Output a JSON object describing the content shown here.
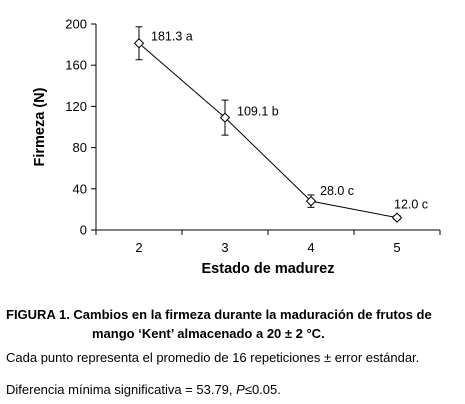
{
  "chart_data": {
    "type": "line",
    "x": [
      2,
      3,
      4,
      5
    ],
    "categories": [
      "2",
      "3",
      "4",
      "5"
    ],
    "series": [
      {
        "values": [
          181.3,
          109.1,
          28.0,
          12.0
        ],
        "errors": [
          16,
          17,
          6,
          2
        ],
        "labels": [
          "181.3 a",
          "109.1 b",
          "28.0 c",
          "12.0 c"
        ]
      }
    ],
    "xlabel": "Estado de madurez",
    "ylabel": "Firmeza (N)",
    "ylim": [
      0,
      200
    ],
    "yticks": [
      0,
      40,
      80,
      120,
      160,
      200
    ],
    "grid": false,
    "marker": "diamond-open"
  },
  "caption": {
    "line1": "FIGURA 1. Cambios en la firmeza durante la maduración de frutos de",
    "line2": "mango ‘Kent’ almacenado a 20 ± 2 °C.",
    "note1": "Cada punto representa el promedio de 16 repeticiones ± error estándar.",
    "note2_prefix": "Diferencia mínima significativa = 53.79, ",
    "note2_italic": "P",
    "note2_suffix": "≤0.05."
  }
}
